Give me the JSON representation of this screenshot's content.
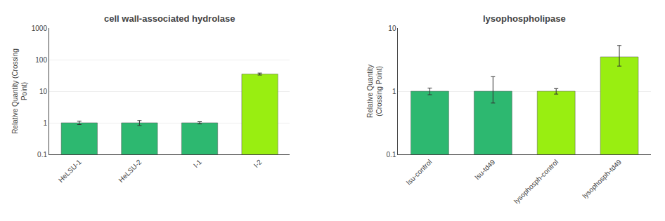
{
  "chart_data": [
    {
      "type": "bar",
      "title": "cell wall-associated hydrolase",
      "categories": [
        "HeLSU-1",
        "HeLSU-2",
        "I-1",
        "I-2"
      ],
      "values": [
        1.0,
        1.0,
        1.0,
        35.0
      ],
      "errors_up": [
        0.12,
        0.18,
        0.08,
        2.5
      ],
      "errors_down": [
        0.12,
        0.18,
        0.08,
        2.5
      ],
      "colors": [
        "#2db870",
        "#2db870",
        "#2db870",
        "#99ee11"
      ],
      "ylabel": "Relative Quantity (Crossing\nPoint)",
      "log": "y",
      "ylim": [
        0.1,
        1000
      ],
      "yticks": [
        0.1,
        1,
        10,
        100,
        1000
      ],
      "grid": true
    },
    {
      "type": "bar",
      "title": "lysophospholipase",
      "categories": [
        "lsu-control",
        "lsu-td49",
        "lysophosph-control",
        "lysophosph-td49"
      ],
      "values": [
        1.0,
        1.0,
        1.0,
        3.5
      ],
      "errors_up": [
        0.12,
        0.7,
        0.1,
        1.8
      ],
      "errors_down": [
        0.12,
        0.35,
        0.1,
        1.0
      ],
      "colors": [
        "#2db870",
        "#2db870",
        "#99ee11",
        "#99ee11"
      ],
      "ylabel": "Relative Quantity\n(Crossing Point)",
      "log": "y",
      "ylim": [
        0.1,
        10
      ],
      "yticks": [
        0.1,
        1,
        10
      ],
      "grid": true
    }
  ]
}
